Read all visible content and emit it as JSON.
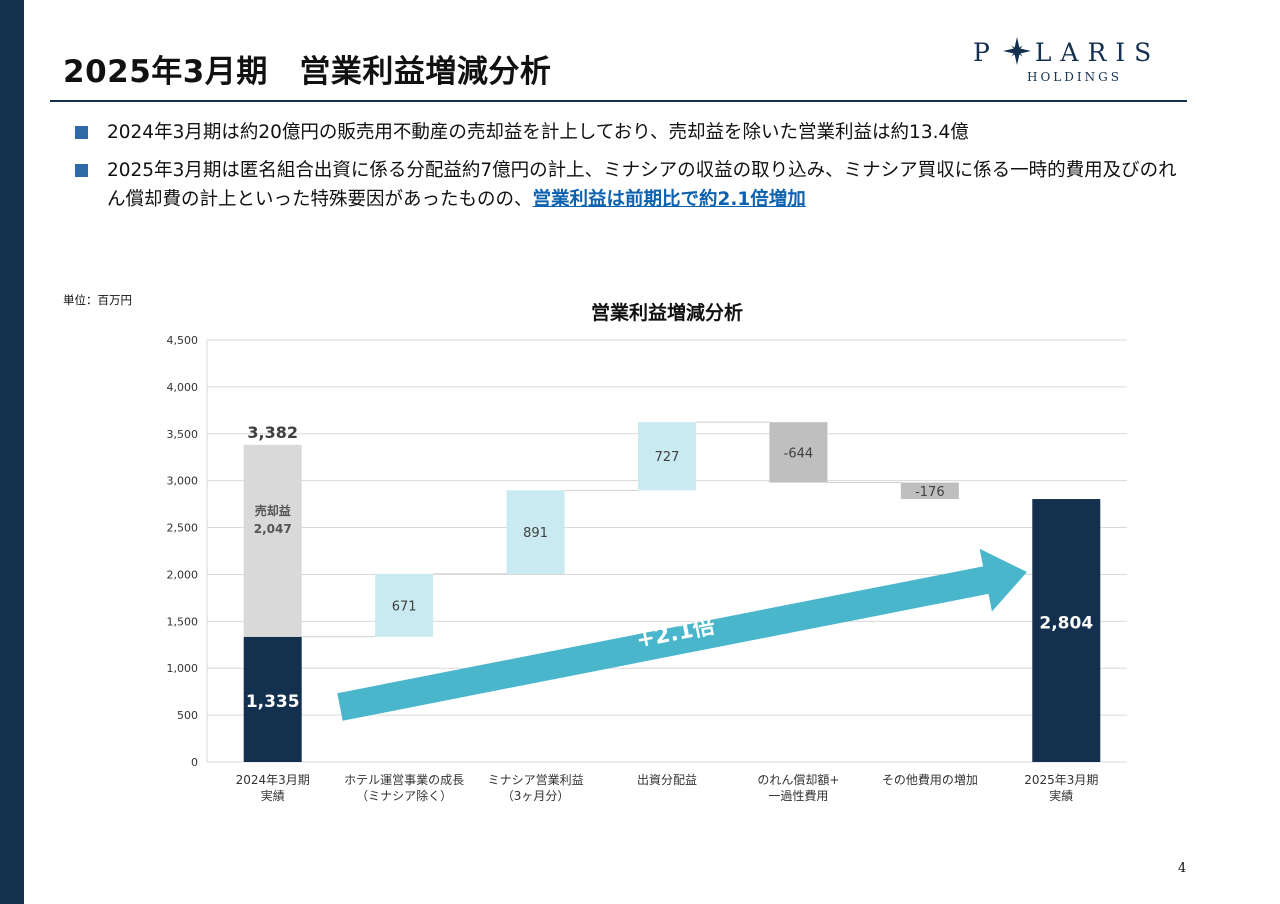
{
  "header": {
    "title": "2025年3月期　営業利益増減分析",
    "logo_main_left": "P",
    "logo_main_right": "LARIS",
    "logo_sub": "HOLDINGS"
  },
  "bullets": [
    {
      "text": "2024年3月期は約20億円の販売用不動産の売却益を計上しており、売却益を除いた営業利益は約13.4億"
    },
    {
      "text": "2025年3月期は匿名組合出資に係る分配益約7億円の計上、ミナシアの収益の取り込み、ミナシア買収に係る一時的費用及びのれん償却費の計上といった特殊要因があったものの、",
      "highlight": "営業利益は前期比で約2.1倍増加"
    }
  ],
  "unit_label": "単位：百万円",
  "arrow_label": "+2.1倍",
  "page_number": "4",
  "chart_data": {
    "type": "waterfall",
    "title": "営業利益増減分析",
    "ylim": [
      0,
      4500
    ],
    "yticks": [
      0,
      500,
      1000,
      1500,
      2000,
      2500,
      3000,
      3500,
      4000,
      4500
    ],
    "ytick_labels": [
      "0",
      "500",
      "1,000",
      "1,500",
      "2,000",
      "2,500",
      "3,000",
      "3,500",
      "4,000",
      "4,500"
    ],
    "grid": true,
    "categories": [
      [
        "2024年3月期",
        "実績"
      ],
      [
        "ホテル運営事業の成長",
        "（ミナシア除く）"
      ],
      [
        "ミナシア営業利益",
        "（3ヶ月分）"
      ],
      [
        "出資分配益"
      ],
      [
        "のれん償却額+",
        "一過性費用"
      ],
      [
        "その他費用の増加"
      ],
      [
        "2025年3月期",
        "実績"
      ]
    ],
    "bars": [
      {
        "kind": "stack",
        "base_value": 1335,
        "base_label": "1,335",
        "stack_value": 2047,
        "stack_label_lines": [
          "売却益",
          "2,047"
        ],
        "total_label": "3,382"
      },
      {
        "kind": "delta",
        "value": 671,
        "label": "671"
      },
      {
        "kind": "delta",
        "value": 891,
        "label": "891"
      },
      {
        "kind": "delta",
        "value": 727,
        "label": "727"
      },
      {
        "kind": "delta",
        "value": -644,
        "label": "-644"
      },
      {
        "kind": "delta",
        "value": -176,
        "label": "-176"
      },
      {
        "kind": "total",
        "value": 2804,
        "label": "2,804"
      }
    ],
    "colors": {
      "actual": "#13304f",
      "gain_on_sale": "#d9d9d9",
      "increase": "#c9eaf1",
      "decrease": "#bfbfbf",
      "arrow": "#49b6cb",
      "grid": "#d9d9d9"
    }
  }
}
